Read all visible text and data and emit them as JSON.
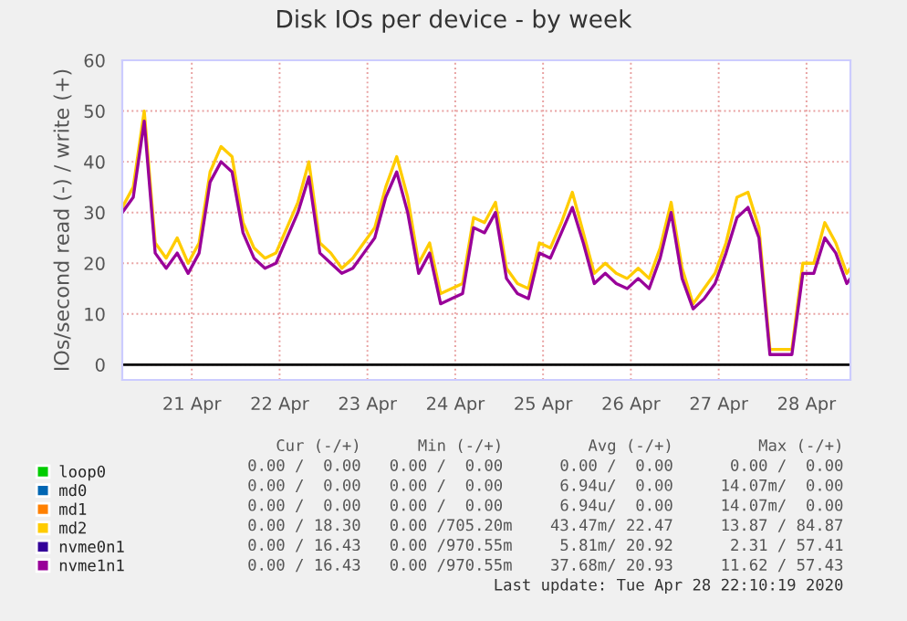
{
  "chart_data": {
    "type": "line",
    "title": "Disk IOs per device - by week",
    "ylabel": "IOs/second read (-) / write (+)",
    "x": [
      "2020-04-20T05:00",
      "2020-04-20T08:00",
      "2020-04-20T11:00",
      "2020-04-20T14:00",
      "2020-04-20T17:00",
      "2020-04-20T20:00",
      "2020-04-20T23:00",
      "2020-04-21T02:00",
      "2020-04-21T05:00",
      "2020-04-21T08:00",
      "2020-04-21T11:00",
      "2020-04-21T14:00",
      "2020-04-21T17:00",
      "2020-04-21T20:00",
      "2020-04-21T23:00",
      "2020-04-22T02:00",
      "2020-04-22T05:00",
      "2020-04-22T08:00",
      "2020-04-22T11:00",
      "2020-04-22T14:00",
      "2020-04-22T17:00",
      "2020-04-22T20:00",
      "2020-04-22T23:00",
      "2020-04-23T02:00",
      "2020-04-23T05:00",
      "2020-04-23T08:00",
      "2020-04-23T11:00",
      "2020-04-23T14:00",
      "2020-04-23T17:00",
      "2020-04-23T20:00",
      "2020-04-23T23:00",
      "2020-04-24T02:00",
      "2020-04-24T05:00",
      "2020-04-24T08:00",
      "2020-04-24T11:00",
      "2020-04-24T14:00",
      "2020-04-24T17:00",
      "2020-04-24T20:00",
      "2020-04-24T23:00",
      "2020-04-25T02:00",
      "2020-04-25T05:00",
      "2020-04-25T08:00",
      "2020-04-25T11:00",
      "2020-04-25T14:00",
      "2020-04-25T17:00",
      "2020-04-25T20:00",
      "2020-04-25T23:00",
      "2020-04-26T02:00",
      "2020-04-26T05:00",
      "2020-04-26T08:00",
      "2020-04-26T11:00",
      "2020-04-26T14:00",
      "2020-04-26T17:00",
      "2020-04-26T20:00",
      "2020-04-26T23:00",
      "2020-04-27T02:00",
      "2020-04-27T05:00",
      "2020-04-27T08:00",
      "2020-04-27T11:00",
      "2020-04-27T14:00",
      "2020-04-27T17:00",
      "2020-04-27T20:00",
      "2020-04-27T23:00",
      "2020-04-28T02:00",
      "2020-04-28T05:00",
      "2020-04-28T08:00",
      "2020-04-28T11:00",
      "2020-04-28T12:00"
    ],
    "series": [
      {
        "name": "loop0",
        "color": "#00cc00",
        "values": [
          null,
          null,
          null,
          null,
          null,
          null,
          null,
          null,
          null,
          null,
          null,
          null,
          null,
          null,
          null,
          null,
          null,
          null,
          null,
          null,
          null,
          null,
          null,
          null,
          null,
          null,
          null,
          null,
          null,
          null,
          null,
          null,
          null,
          null,
          null,
          null,
          null,
          null,
          null,
          null,
          null,
          null,
          null,
          null,
          null,
          null,
          null,
          null,
          null,
          null,
          null,
          null,
          null,
          null,
          null,
          null,
          null,
          null,
          null,
          null,
          null,
          null,
          null,
          null,
          null,
          null,
          null,
          null
        ]
      },
      {
        "name": "md0",
        "color": "#0066b3",
        "values": [
          null,
          null,
          null,
          null,
          null,
          null,
          null,
          null,
          null,
          null,
          null,
          null,
          null,
          null,
          null,
          null,
          null,
          null,
          null,
          null,
          null,
          null,
          null,
          null,
          null,
          null,
          null,
          null,
          null,
          null,
          null,
          null,
          null,
          null,
          null,
          null,
          null,
          null,
          null,
          null,
          null,
          null,
          null,
          null,
          null,
          null,
          null,
          null,
          null,
          null,
          null,
          null,
          null,
          null,
          null,
          null,
          null,
          null,
          null,
          null,
          null,
          null,
          null,
          null,
          null,
          null,
          null,
          null
        ]
      },
      {
        "name": "md1",
        "color": "#ff8000",
        "values": [
          null,
          null,
          null,
          null,
          null,
          null,
          null,
          null,
          null,
          null,
          null,
          null,
          null,
          null,
          null,
          null,
          null,
          null,
          null,
          null,
          null,
          null,
          null,
          null,
          null,
          null,
          null,
          null,
          null,
          null,
          null,
          null,
          null,
          null,
          null,
          null,
          null,
          null,
          null,
          null,
          null,
          null,
          null,
          null,
          null,
          null,
          null,
          null,
          null,
          null,
          null,
          null,
          null,
          null,
          null,
          null,
          null,
          null,
          null,
          null,
          null,
          null,
          null,
          null,
          null,
          null,
          null,
          null
        ]
      },
      {
        "name": "md2",
        "color": "#ffcc00",
        "values": [
          31,
          35,
          50,
          24,
          21,
          25,
          20,
          24,
          38,
          43,
          41,
          28,
          23,
          21,
          22,
          27,
          32,
          40,
          24,
          22,
          19,
          21,
          24,
          27,
          35,
          41,
          33,
          20,
          24,
          14,
          15,
          16,
          29,
          28,
          32,
          19,
          16,
          15,
          24,
          23,
          28,
          34,
          26,
          18,
          20,
          18,
          17,
          19,
          17,
          23,
          32,
          19,
          12,
          15,
          18,
          24,
          33,
          34,
          27,
          3,
          3,
          3,
          20,
          20,
          28,
          24,
          18,
          19
        ]
      },
      {
        "name": "nvme0n1",
        "color": "#330099",
        "values": [
          null,
          null,
          null,
          null,
          null,
          null,
          null,
          null,
          null,
          null,
          null,
          null,
          null,
          null,
          null,
          null,
          null,
          null,
          null,
          null,
          null,
          null,
          null,
          null,
          null,
          null,
          null,
          null,
          null,
          null,
          null,
          null,
          null,
          null,
          null,
          null,
          null,
          null,
          null,
          null,
          null,
          null,
          null,
          null,
          null,
          null,
          null,
          null,
          null,
          null,
          null,
          null,
          null,
          null,
          null,
          null,
          null,
          null,
          null,
          null,
          null,
          null,
          null,
          null,
          null,
          null,
          null,
          null
        ]
      },
      {
        "name": "nvme1n1",
        "color": "#990099",
        "values": [
          30,
          33,
          48,
          22,
          19,
          22,
          18,
          22,
          36,
          40,
          38,
          26,
          21,
          19,
          20,
          25,
          30,
          37,
          22,
          20,
          18,
          19,
          22,
          25,
          33,
          38,
          30,
          18,
          22,
          12,
          13,
          14,
          27,
          26,
          30,
          17,
          14,
          13,
          22,
          21,
          26,
          31,
          24,
          16,
          18,
          16,
          15,
          17,
          15,
          21,
          30,
          17,
          11,
          13,
          16,
          22,
          29,
          31,
          25,
          2,
          2,
          2,
          18,
          18,
          25,
          22,
          16,
          17
        ]
      }
    ],
    "xlim": [
      "2020-04-20T05:00",
      "2020-04-28T12:00"
    ],
    "xticks": [
      {
        "value": "2020-04-21",
        "label": "21 Apr"
      },
      {
        "value": "2020-04-22",
        "label": "22 Apr"
      },
      {
        "value": "2020-04-23",
        "label": "23 Apr"
      },
      {
        "value": "2020-04-24",
        "label": "24 Apr"
      },
      {
        "value": "2020-04-25",
        "label": "25 Apr"
      },
      {
        "value": "2020-04-26",
        "label": "26 Apr"
      },
      {
        "value": "2020-04-27",
        "label": "27 Apr"
      },
      {
        "value": "2020-04-28",
        "label": "28 Apr"
      }
    ],
    "ylim": [
      -3,
      60
    ],
    "yticks": [
      0,
      10,
      20,
      30,
      40,
      50,
      60
    ],
    "ref_lines": [
      {
        "axis": "y",
        "value": 0,
        "color": "#000000"
      }
    ],
    "grid": true,
    "legend": "bottom left",
    "marker": "none",
    "line_style": "solid",
    "annotations": [
      "Cur (-/+)      Min (-/+)         Avg (-/+)         Max (-/+)",
      "0.00 /  0.00   0.00 /  0.00      0.00 /  0.00      0.00 /  0.00",
      "0.00 /  0.00   0.00 /  0.00      6.94u/  0.00     14.07m/  0.00",
      "0.00 /  0.00   0.00 /  0.00      6.94u/  0.00     14.07m/  0.00",
      "0.00 / 18.30   0.00 /705.20m    43.47m/ 22.47     13.87 / 84.87",
      "0.00 / 16.43   0.00 /970.55m     5.81m/ 20.92      2.31 / 57.41",
      "0.00 / 16.43   0.00 /970.55m    37.68m/ 20.93     11.62 / 57.43",
      "Last update: Tue Apr 28 22:10:19 2020"
    ]
  }
}
